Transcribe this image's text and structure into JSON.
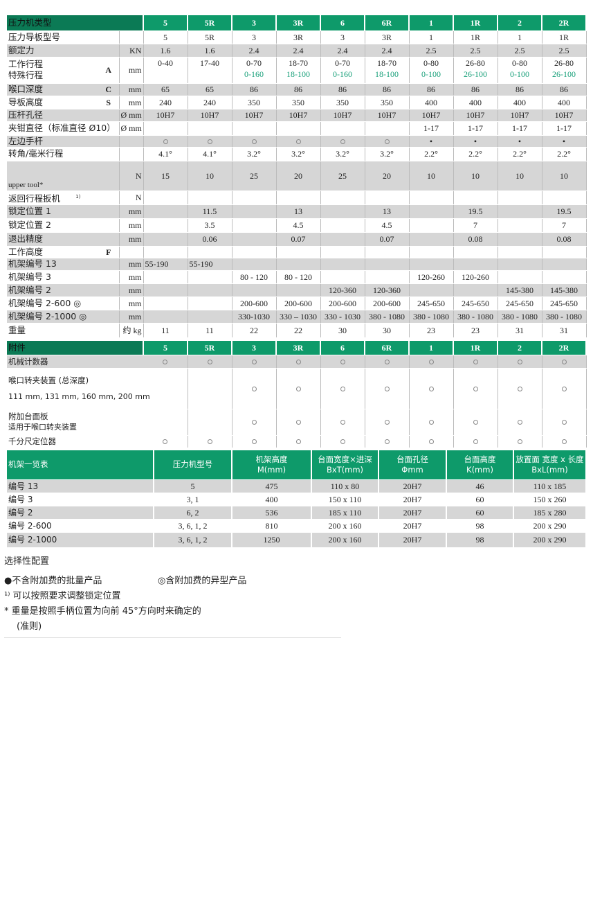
{
  "colors": {
    "header_green": "#0e9a6a",
    "header_dark": "#0b7a55",
    "special_stroke": "#19a07a",
    "row_gray": "#d6d6d6"
  },
  "main": {
    "title": "压力机类型",
    "columns": [
      "5",
      "5R",
      "3",
      "3R",
      "6",
      "6R",
      "1",
      "1R",
      "2",
      "2R"
    ],
    "rows": [
      {
        "label": "压力导板型号",
        "letter": "",
        "unit": "",
        "values": [
          "5",
          "5R",
          "3",
          "3R",
          "3",
          "3R",
          "1",
          "1R",
          "1",
          "1R"
        ]
      },
      {
        "label": "额定力",
        "letter": "",
        "unit": "KN",
        "values": [
          "1.6",
          "1.6",
          "2.4",
          "2.4",
          "2.4",
          "2.4",
          "2.5",
          "2.5",
          "2.5",
          "2.5"
        ]
      },
      {
        "label": "工作行程",
        "label2": "特殊行程",
        "letter": "A",
        "unit": "mm",
        "values": [
          "0-40",
          "17-40",
          "0-70",
          "18-70",
          "0-70",
          "18-70",
          "0-80",
          "26-80",
          "0-80",
          "26-80"
        ],
        "values2": [
          "",
          "",
          "0-160",
          "18-100",
          "0-160",
          "18-100",
          "0-100",
          "26-100",
          "0-100",
          "26-100"
        ]
      },
      {
        "label": "喉口深度",
        "letter": "C",
        "unit": "mm",
        "values": [
          "65",
          "65",
          "86",
          "86",
          "86",
          "86",
          "86",
          "86",
          "86",
          "86"
        ]
      },
      {
        "label": "导板高度",
        "letter": "S",
        "unit": "mm",
        "values": [
          "240",
          "240",
          "350",
          "350",
          "350",
          "350",
          "400",
          "400",
          "400",
          "400"
        ]
      },
      {
        "label": "压杆孔径",
        "letter": "",
        "unit": "Ø mm",
        "values": [
          "10H7",
          "10H7",
          "10H7",
          "10H7",
          "10H7",
          "10H7",
          "10H7",
          "10H7",
          "10H7",
          "10H7"
        ]
      },
      {
        "label": "夹钳直径（标准直径 Ø10）",
        "letter": "",
        "unit": "Ø mm",
        "values": [
          "",
          "",
          "",
          "",
          "",
          "",
          "1-17",
          "1-17",
          "1-17",
          "1-17"
        ]
      },
      {
        "label": "左边手杆",
        "letter": "",
        "unit": "",
        "values": [
          "◎",
          "◎",
          "◎",
          "◎",
          "◎",
          "◎",
          "•",
          "•",
          "•",
          "•"
        ]
      },
      {
        "label": "转角/毫米行程",
        "letter": "",
        "unit": "",
        "values": [
          "4.1°",
          "4.1°",
          "3.2°",
          "3.2°",
          "3.2°",
          "3.2°",
          "2.2°",
          "2.2°",
          "2.2°",
          "2.2°"
        ]
      },
      {
        "label": "upper tool*",
        "letter": "",
        "unit": "N",
        "values": [
          "15",
          "10",
          "25",
          "20",
          "25",
          "20",
          "10",
          "10",
          "10",
          "10"
        ]
      },
      {
        "label": "返回行程扳机",
        "sup": "1)",
        "letter": "",
        "unit": "N",
        "values": [
          "",
          "",
          "",
          "",
          "",
          "",
          "",
          "",
          "",
          ""
        ]
      },
      {
        "label": "锁定位置 1",
        "letter": "",
        "unit": "mm",
        "values": [
          "",
          "11.5",
          "",
          "13",
          "",
          "13",
          "",
          "19.5",
          "",
          "19.5"
        ]
      },
      {
        "label": "锁定位置 2",
        "letter": "",
        "unit": "mm",
        "values": [
          "",
          "3.5",
          "",
          "4.5",
          "",
          "4.5",
          "",
          "7",
          "",
          "7"
        ]
      },
      {
        "label": "退出精度",
        "letter": "",
        "unit": "mm",
        "values": [
          "",
          "0.06",
          "",
          "0.07",
          "",
          "0.07",
          "",
          "0.08",
          "",
          "0.08"
        ]
      },
      {
        "label": "工作高度",
        "letter": "F",
        "unit": "",
        "values": [
          "",
          "",
          "",
          "",
          "",
          "",
          "",
          "",
          "",
          ""
        ]
      },
      {
        "label": "机架编号 13",
        "letter": "",
        "unit": "mm",
        "values": [
          "55-190",
          "55-190",
          "",
          "",
          "",
          "",
          "",
          "",
          "",
          ""
        ]
      },
      {
        "label": "机架编号 3",
        "letter": "",
        "unit": "mm",
        "values": [
          "",
          "",
          "80 - 120",
          "80 - 120",
          "",
          "",
          "120-260",
          "120-260",
          "",
          ""
        ]
      },
      {
        "label": "机架编号 2",
        "letter": "",
        "unit": "mm",
        "values": [
          "",
          "",
          "",
          "",
          "120-360",
          "120-360",
          "",
          "",
          "145-380",
          "145-380"
        ]
      },
      {
        "label": "机架编号 2-600 ◎",
        "letter": "",
        "unit": "mm",
        "values": [
          "",
          "",
          "200-600",
          "200-600",
          "200-600",
          "200-600",
          "245-650",
          "245-650",
          "245-650",
          "245-650"
        ]
      },
      {
        "label": "机架编号 2-1000 ◎",
        "letter": "",
        "unit": "mm",
        "values": [
          "",
          "",
          "330-1030",
          "330 – 1030",
          "330 - 1030",
          "380 - 1080",
          "380 - 1080",
          "380 - 1080",
          "380 - 1080",
          "380 - 1080"
        ]
      },
      {
        "label": "重量",
        "letter": "",
        "unit": "约 kg",
        "values": [
          "11",
          "11",
          "22",
          "22",
          "30",
          "30",
          "23",
          "23",
          "31",
          "31"
        ]
      }
    ]
  },
  "accessories": {
    "title": "附件",
    "rows": [
      {
        "label": "机械计数器",
        "values": [
          "◎",
          "◎",
          "◎",
          "◎",
          "◎",
          "◎",
          "◎",
          "◎",
          "◎",
          "◎"
        ]
      },
      {
        "label": "喉口转夹装置 (总深度)",
        "label2": "111 mm, 131 mm, 160 mm, 200 mm",
        "values": [
          "",
          "",
          "◎",
          "◎",
          "◎",
          "◎",
          "◎",
          "◎",
          "◎",
          "◎"
        ]
      },
      {
        "label": "附加台面板",
        "label2": "适用于喉口转夹装置",
        "values": [
          "",
          "",
          "◎",
          "◎",
          "◎",
          "◎",
          "◎",
          "◎",
          "◎",
          "◎"
        ]
      },
      {
        "label": "千分尺定位器",
        "values": [
          "◎",
          "◎",
          "◎",
          "◎",
          "◎",
          "◎",
          "◎",
          "◎",
          "◎",
          "◎"
        ]
      }
    ]
  },
  "frames": {
    "headers": [
      "机架一览表",
      "压力机型号",
      "机架高度\nM(mm)",
      "台面宽度×进深\nBxT(mm)",
      "台面孔径\nΦmm",
      "台面高度\nK(mm)",
      "放置面 宽度 x 长度\nBxL(mm)"
    ],
    "rows": [
      [
        "编号 13",
        "5",
        "475",
        "110 x 80",
        "20H7",
        "46",
        "110 x 185"
      ],
      [
        "编号 3",
        "3, 1",
        "400",
        "150 x 110",
        "20H7",
        "60",
        "150 x 260"
      ],
      [
        "编号 2",
        "6, 2",
        "536",
        "185 x 110",
        "20H7",
        "60",
        "185 x 280"
      ],
      [
        "编号 2-600",
        "3, 6, 1, 2",
        "810",
        "200 x 160",
        "20H7",
        "98",
        "200 x 290"
      ],
      [
        "编号 2-1000",
        "3, 6, 1, 2",
        "1250",
        "200 x 160",
        "20H7",
        "98",
        "200 x 290"
      ]
    ]
  },
  "notes": {
    "title": "选择性配置",
    "standard": "●不含附加费的批量产品",
    "optional": "◎含附加费的异型产品",
    "footnote1": "¹⁾ 可以按照要求调整锁定位置",
    "footnote2": "* 重量是按照手柄位置为向前 45°方向时来确定的",
    "footnote3": "(准则)"
  }
}
